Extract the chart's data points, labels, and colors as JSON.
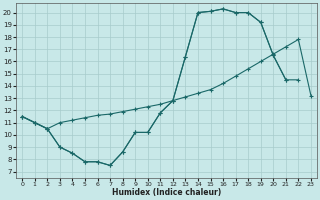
{
  "bg_color": "#c8e8e8",
  "line_color": "#1a6868",
  "grid_color": "#a8cccc",
  "xlim": [
    -0.5,
    23.5
  ],
  "ylim": [
    6.5,
    20.8
  ],
  "xticks": [
    0,
    1,
    2,
    3,
    4,
    5,
    6,
    7,
    8,
    9,
    10,
    11,
    12,
    13,
    14,
    15,
    16,
    17,
    18,
    19,
    20,
    21,
    22,
    23
  ],
  "yticks": [
    7,
    8,
    9,
    10,
    11,
    12,
    13,
    14,
    15,
    16,
    17,
    18,
    19,
    20
  ],
  "xlabel": "Humidex (Indice chaleur)",
  "line1_x": [
    0,
    1,
    2,
    3,
    4,
    5,
    6,
    7,
    8,
    9,
    10,
    11,
    12,
    13,
    14,
    15,
    16,
    17,
    18,
    19,
    20,
    21,
    22,
    23
  ],
  "line1_y": [
    11.5,
    11.0,
    10.5,
    11.0,
    11.2,
    11.4,
    11.6,
    11.7,
    11.9,
    12.1,
    12.3,
    12.5,
    12.8,
    13.1,
    13.4,
    13.7,
    14.2,
    14.8,
    15.4,
    16.0,
    16.6,
    17.2,
    17.8,
    13.2
  ],
  "line2_x": [
    0,
    1,
    2,
    3,
    4,
    5,
    6,
    7,
    8,
    9,
    10,
    11,
    12,
    13,
    14,
    15,
    16,
    17,
    18,
    19,
    20,
    21,
    22
  ],
  "line2_y": [
    11.5,
    11.0,
    10.5,
    9.0,
    8.5,
    7.8,
    7.8,
    7.5,
    8.6,
    10.2,
    10.2,
    11.8,
    12.8,
    16.4,
    20.0,
    20.1,
    20.3,
    20.0,
    20.0,
    19.2,
    16.5,
    14.5,
    14.5
  ],
  "line3_x": [
    0,
    1,
    2,
    3,
    4,
    5,
    6,
    7,
    8,
    9,
    10,
    11,
    12,
    13,
    14,
    15,
    16,
    17,
    18,
    19,
    20,
    21
  ],
  "line3_y": [
    11.5,
    11.0,
    10.5,
    9.0,
    8.5,
    7.8,
    7.8,
    7.5,
    8.6,
    10.2,
    10.2,
    11.8,
    12.8,
    16.4,
    20.0,
    20.1,
    20.3,
    20.0,
    20.0,
    19.2,
    16.5,
    14.5
  ]
}
